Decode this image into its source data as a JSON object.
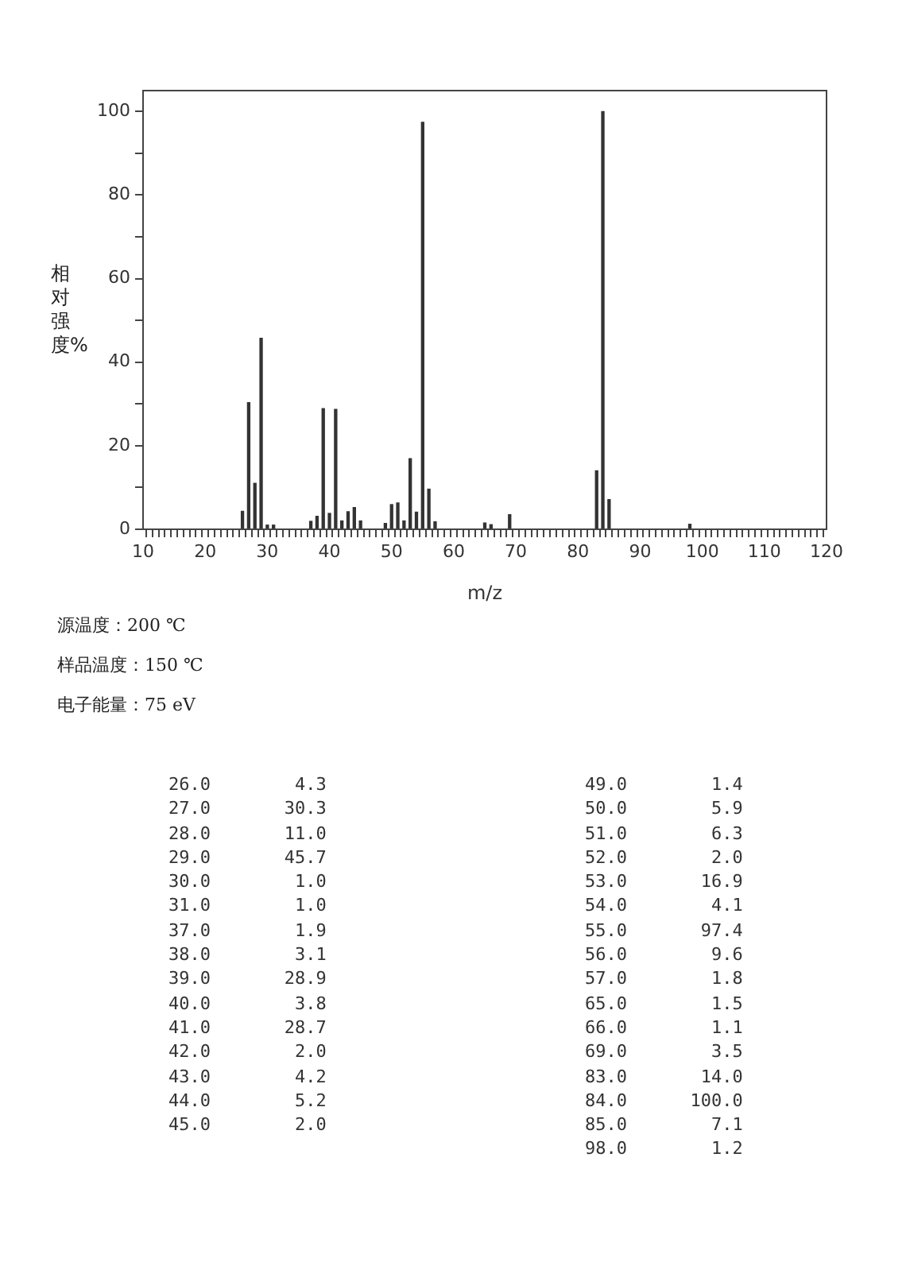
{
  "chart_data": {
    "type": "bar",
    "xlabel": "m/z",
    "ylabel": "相对强度%",
    "x": [
      26,
      27,
      28,
      29,
      30,
      31,
      37,
      38,
      39,
      40,
      41,
      42,
      43,
      44,
      45,
      49,
      50,
      51,
      52,
      53,
      54,
      55,
      56,
      57,
      65,
      66,
      69,
      83,
      84,
      85,
      98
    ],
    "values": [
      4.3,
      30.3,
      11.0,
      45.7,
      1.0,
      1.0,
      1.9,
      3.1,
      28.9,
      3.8,
      28.7,
      2.0,
      4.2,
      5.2,
      2.0,
      1.4,
      5.9,
      6.3,
      2.0,
      16.9,
      4.1,
      97.4,
      9.6,
      1.8,
      1.5,
      1.1,
      3.5,
      14.0,
      100.0,
      7.1,
      1.2
    ],
    "color": "#333333",
    "xlim": [
      10,
      120
    ],
    "xticks": [
      10,
      {
        "value": 11,
        "label": null
      },
      {
        "value": 12,
        "label": null
      },
      {
        "value": 13,
        "label": null
      },
      {
        "value": 14,
        "label": null
      },
      {
        "value": 15,
        "label": null
      },
      {
        "value": 16,
        "label": null
      },
      {
        "value": 17,
        "label": null
      },
      {
        "value": 18,
        "label": null
      },
      {
        "value": 19,
        "label": null
      },
      20,
      {
        "value": 21,
        "label": null
      },
      {
        "value": 22,
        "label": null
      },
      {
        "value": 23,
        "label": null
      },
      {
        "value": 24,
        "label": null
      },
      {
        "value": 25,
        "label": null
      },
      {
        "value": 26,
        "label": null
      },
      {
        "value": 27,
        "label": null
      },
      {
        "value": 28,
        "label": null
      },
      {
        "value": 29,
        "label": null
      },
      30,
      {
        "value": 31,
        "label": null
      },
      {
        "value": 32,
        "label": null
      },
      {
        "value": 33,
        "label": null
      },
      {
        "value": 34,
        "label": null
      },
      {
        "value": 35,
        "label": null
      },
      {
        "value": 36,
        "label": null
      },
      {
        "value": 37,
        "label": null
      },
      {
        "value": 38,
        "label": null
      },
      {
        "value": 39,
        "label": null
      },
      40,
      {
        "value": 41,
        "label": null
      },
      {
        "value": 42,
        "label": null
      },
      {
        "value": 43,
        "label": null
      },
      {
        "value": 44,
        "label": null
      },
      {
        "value": 45,
        "label": null
      },
      {
        "value": 46,
        "label": null
      },
      {
        "value": 47,
        "label": null
      },
      {
        "value": 48,
        "label": null
      },
      {
        "value": 49,
        "label": null
      },
      50,
      {
        "value": 51,
        "label": null
      },
      {
        "value": 52,
        "label": null
      },
      {
        "value": 53,
        "label": null
      },
      {
        "value": 54,
        "label": null
      },
      {
        "value": 55,
        "label": null
      },
      {
        "value": 56,
        "label": null
      },
      {
        "value": 57,
        "label": null
      },
      {
        "value": 58,
        "label": null
      },
      {
        "value": 59,
        "label": null
      },
      60,
      {
        "value": 61,
        "label": null
      },
      {
        "value": 62,
        "label": null
      },
      {
        "value": 63,
        "label": null
      },
      {
        "value": 64,
        "label": null
      },
      {
        "value": 65,
        "label": null
      },
      {
        "value": 66,
        "label": null
      },
      {
        "value": 67,
        "label": null
      },
      {
        "value": 68,
        "label": null
      },
      {
        "value": 69,
        "label": null
      },
      70,
      {
        "value": 71,
        "label": null
      },
      {
        "value": 72,
        "label": null
      },
      {
        "value": 73,
        "label": null
      },
      {
        "value": 74,
        "label": null
      },
      {
        "value": 75,
        "label": null
      },
      {
        "value": 76,
        "label": null
      },
      {
        "value": 77,
        "label": null
      },
      {
        "value": 78,
        "label": null
      },
      {
        "value": 79,
        "label": null
      },
      80,
      {
        "value": 81,
        "label": null
      },
      {
        "value": 82,
        "label": null
      },
      {
        "value": 83,
        "label": null
      },
      {
        "value": 84,
        "label": null
      },
      {
        "value": 85,
        "label": null
      },
      {
        "value": 86,
        "label": null
      },
      {
        "value": 87,
        "label": null
      },
      {
        "value": 88,
        "label": null
      },
      {
        "value": 89,
        "label": null
      },
      90,
      {
        "value": 91,
        "label": null
      },
      {
        "value": 92,
        "label": null
      },
      {
        "value": 93,
        "label": null
      },
      {
        "value": 94,
        "label": null
      },
      {
        "value": 95,
        "label": null
      },
      {
        "value": 96,
        "label": null
      },
      {
        "value": 97,
        "label": null
      },
      {
        "value": 98,
        "label": null
      },
      {
        "value": 99,
        "label": null
      },
      100,
      {
        "value": 101,
        "label": null
      },
      {
        "value": 102,
        "label": null
      },
      {
        "value": 103,
        "label": null
      },
      {
        "value": 104,
        "label": null
      },
      {
        "value": 105,
        "label": null
      },
      {
        "value": 106,
        "label": null
      },
      {
        "value": 107,
        "label": null
      },
      {
        "value": 108,
        "label": null
      },
      {
        "value": 109,
        "label": null
      },
      110,
      {
        "value": 111,
        "label": null
      },
      {
        "value": 112,
        "label": null
      },
      {
        "value": 113,
        "label": null
      },
      {
        "value": 114,
        "label": null
      },
      {
        "value": 115,
        "label": null
      },
      {
        "value": 116,
        "label": null
      },
      {
        "value": 117,
        "label": null
      },
      {
        "value": 118,
        "label": null
      },
      {
        "value": 119,
        "label": null
      },
      120
    ],
    "ylim": [
      0,
      105
    ],
    "yticks": [
      0,
      {
        "value": 10,
        "label": null
      },
      20,
      {
        "value": 30,
        "label": null
      },
      40,
      {
        "value": 50,
        "label": null
      },
      60,
      {
        "value": 70,
        "label": null
      },
      80,
      {
        "value": 90,
        "label": null
      },
      100
    ],
    "grid": false,
    "legend": false,
    "annotations": [
      "源温度：200 ℃",
      "样品温度：150 ℃",
      "电子能量：75 eV",
      "26.0        4.3",
      "27.0       30.3",
      "28.0       11.0",
      "29.0       45.7",
      "30.0        1.0",
      "31.0        1.0",
      "37.0        1.9",
      "38.0        3.1",
      "39.0       28.9",
      "40.0        3.8",
      "41.0       28.7",
      "42.0        2.0",
      "43.0        4.2",
      "44.0        5.2",
      "45.0        2.0",
      "49.0        1.4",
      "50.0        5.9",
      "51.0        6.3",
      "52.0        2.0",
      "53.0       16.9",
      "54.0        4.1",
      "55.0       97.4",
      "56.0        9.6",
      "57.0        1.8",
      "65.0        1.5",
      "66.0        1.1",
      "69.0        3.5",
      "83.0       14.0",
      "84.0      100.0",
      "85.0        7.1",
      "98.0        1.2"
    ]
  }
}
